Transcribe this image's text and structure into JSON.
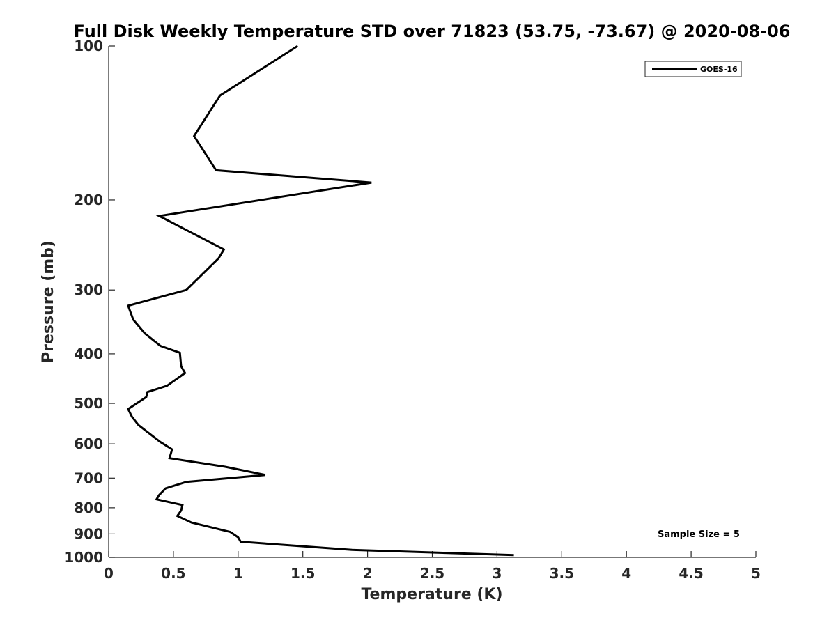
{
  "chart_data": {
    "type": "line",
    "title": "Full Disk Weekly Temperature STD over 71823 (53.75, -73.67) @ 2020-08-06",
    "xlabel": "Temperature (K)",
    "ylabel": "Pressure (mb)",
    "xlim": [
      0,
      5
    ],
    "ylim": [
      100,
      1000
    ],
    "y_scale": "log",
    "y_reversed": true,
    "x_ticks": [
      0,
      0.5,
      1,
      1.5,
      2,
      2.5,
      3,
      3.5,
      4,
      4.5,
      5
    ],
    "x_tick_labels": [
      "0",
      "0.5",
      "1",
      "1.5",
      "2",
      "2.5",
      "3",
      "3.5",
      "4",
      "4.5",
      "5"
    ],
    "y_ticks": [
      100,
      200,
      300,
      400,
      500,
      600,
      700,
      800,
      900,
      1000
    ],
    "y_tick_labels": [
      "100",
      "200",
      "300",
      "400",
      "500",
      "600",
      "700",
      "800",
      "900",
      "1000"
    ],
    "grid": false,
    "legend_position": "top-right",
    "annotation": "Sample Size = 5",
    "series": [
      {
        "name": "GOES-16",
        "color": "#000000",
        "points": [
          [
            1.46,
            100
          ],
          [
            0.86,
            125
          ],
          [
            0.66,
            150
          ],
          [
            0.83,
            175
          ],
          [
            2.03,
            185
          ],
          [
            0.39,
            215
          ],
          [
            0.89,
            250
          ],
          [
            0.85,
            260
          ],
          [
            0.6,
            300
          ],
          [
            0.15,
            322
          ],
          [
            0.19,
            343
          ],
          [
            0.28,
            365
          ],
          [
            0.4,
            386
          ],
          [
            0.55,
            398
          ],
          [
            0.56,
            423
          ],
          [
            0.59,
            436
          ],
          [
            0.45,
            462
          ],
          [
            0.3,
            475
          ],
          [
            0.29,
            486
          ],
          [
            0.15,
            513
          ],
          [
            0.18,
            531
          ],
          [
            0.23,
            551
          ],
          [
            0.4,
            595
          ],
          [
            0.49,
            615
          ],
          [
            0.47,
            640
          ],
          [
            0.9,
            665
          ],
          [
            1.21,
            690
          ],
          [
            0.6,
            712
          ],
          [
            0.44,
            733
          ],
          [
            0.39,
            755
          ],
          [
            0.37,
            770
          ],
          [
            0.57,
            790
          ],
          [
            0.56,
            810
          ],
          [
            0.53,
            830
          ],
          [
            0.64,
            855
          ],
          [
            0.94,
            892
          ],
          [
            1.0,
            914
          ],
          [
            1.02,
            932
          ],
          [
            1.88,
            967
          ],
          [
            3.13,
            990
          ]
        ]
      }
    ]
  }
}
